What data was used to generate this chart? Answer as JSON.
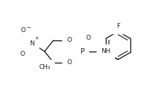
{
  "bg_color": "#ffffff",
  "line_color": "#1a1a1a",
  "line_width": 1.0,
  "font_size": 6.5,
  "figsize": [
    2.14,
    1.55
  ],
  "dpi": 100,
  "xlim": [
    0,
    10
  ],
  "ylim": [
    0,
    7.25
  ]
}
